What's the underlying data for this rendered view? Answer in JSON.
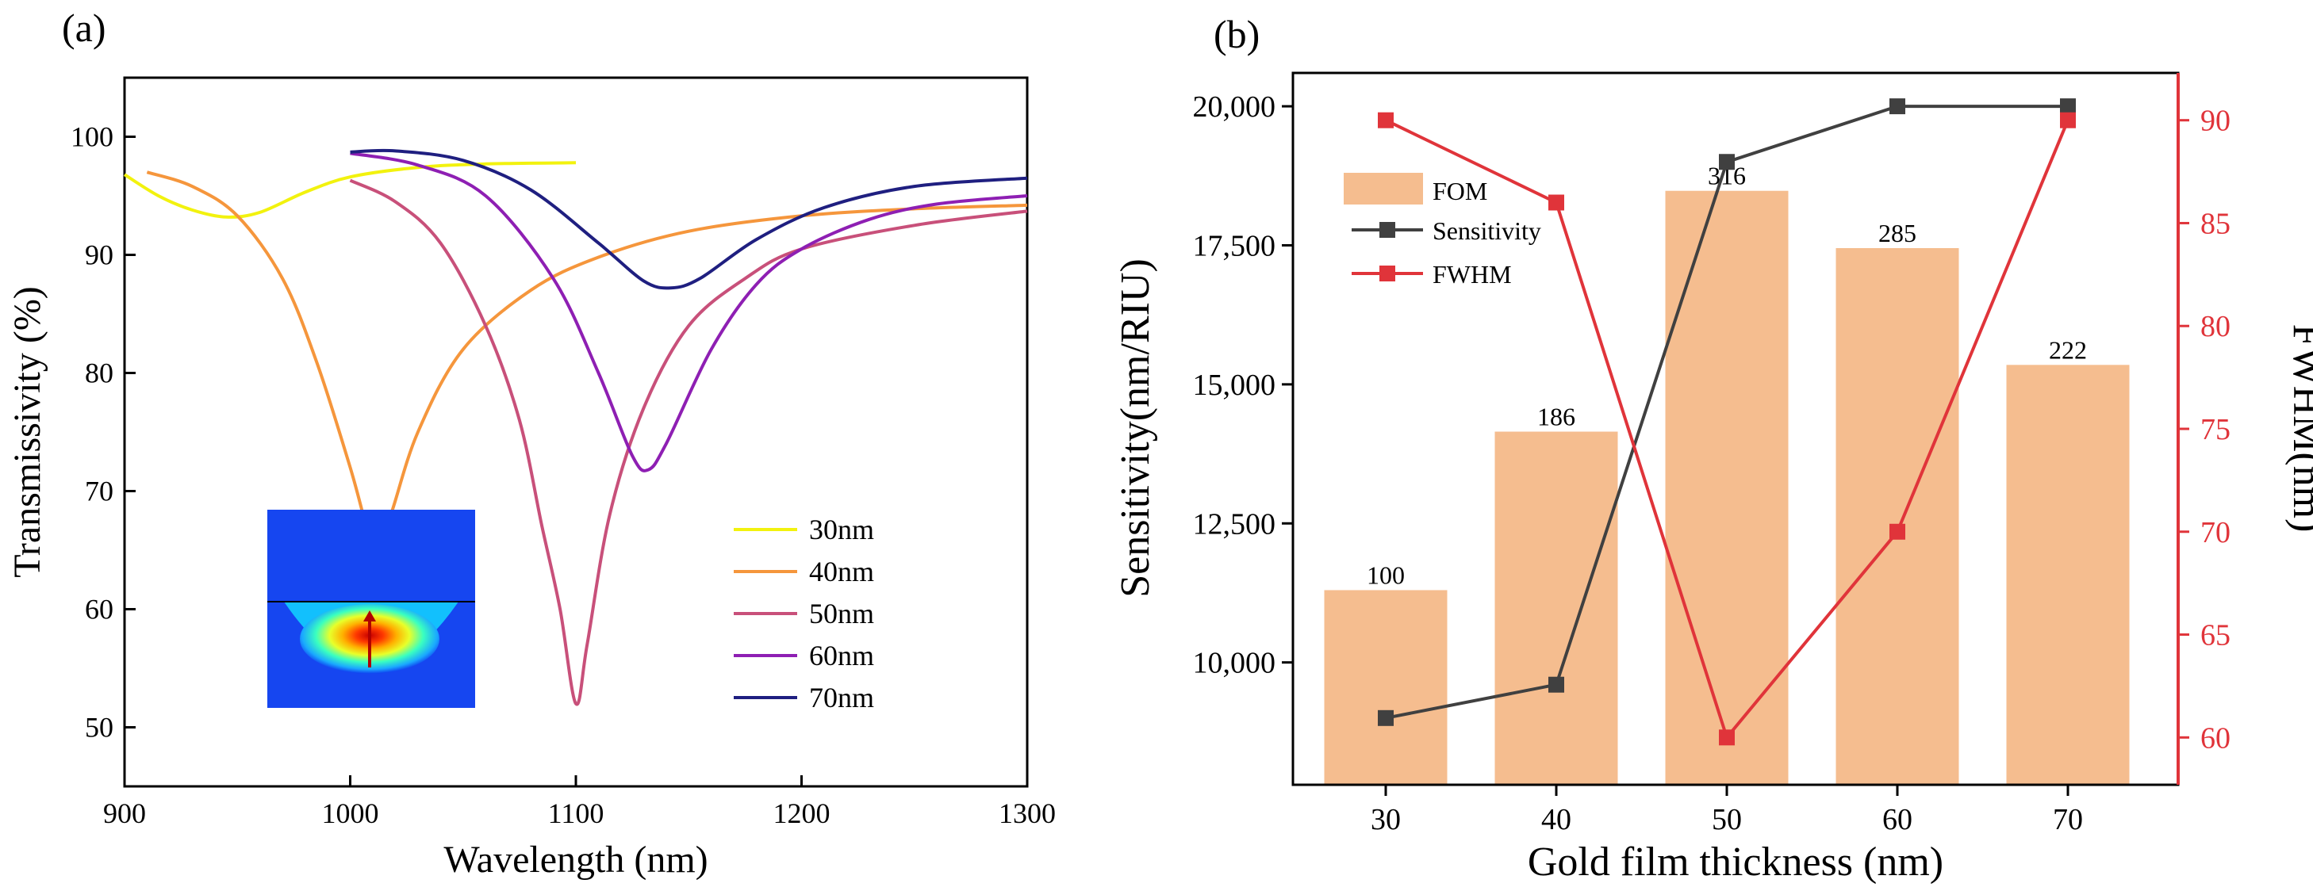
{
  "chart_data": [
    {
      "type": "line",
      "panel_label": "(a)",
      "xlabel": "Wavelength (nm)",
      "ylabel": "Transmissivity (%)",
      "xlim": [
        900,
        1300
      ],
      "ylim": [
        45,
        105
      ],
      "xticks": [
        900,
        1000,
        1100,
        1200,
        1300
      ],
      "yticks": [
        50,
        60,
        70,
        80,
        90,
        100
      ],
      "legend_position": "lower-right",
      "inset": "field distribution image",
      "series": [
        {
          "name": "30nm",
          "color": "#f2f20e",
          "x": [
            900,
            915,
            930,
            945,
            960,
            980,
            1000,
            1030,
            1060,
            1100
          ],
          "y": [
            96.8,
            95.0,
            93.8,
            93.2,
            93.6,
            95.3,
            96.6,
            97.4,
            97.7,
            97.8
          ]
        },
        {
          "name": "40nm",
          "color": "#f5963c",
          "x": [
            910,
            930,
            950,
            970,
            985,
            1000,
            1008,
            1012,
            1018,
            1030,
            1050,
            1080,
            1110,
            1150,
            1200,
            1250,
            1300
          ],
          "y": [
            97.0,
            95.8,
            93.3,
            88.0,
            81.0,
            72.0,
            66.5,
            65.5,
            68.0,
            75.0,
            82.0,
            87.0,
            89.8,
            92.0,
            93.3,
            93.9,
            94.2
          ]
        },
        {
          "name": "50nm",
          "color": "#c8507a",
          "x": [
            1000,
            1020,
            1040,
            1060,
            1075,
            1085,
            1093,
            1100,
            1105,
            1115,
            1130,
            1150,
            1175,
            1200,
            1250,
            1300
          ],
          "y": [
            96.3,
            94.5,
            91.0,
            84.0,
            76.0,
            67.0,
            60.0,
            52.0,
            57.0,
            68.0,
            77.0,
            84.0,
            88.0,
            90.5,
            92.5,
            93.7
          ]
        },
        {
          "name": "60nm",
          "color": "#8e1fb3",
          "x": [
            1000,
            1030,
            1060,
            1090,
            1110,
            1125,
            1132,
            1140,
            1160,
            1180,
            1200,
            1230,
            1260,
            1300
          ],
          "y": [
            98.6,
            97.6,
            95.0,
            88.0,
            80.0,
            73.0,
            71.8,
            74.0,
            82.0,
            87.5,
            90.5,
            93.0,
            94.3,
            95.0
          ]
        },
        {
          "name": "70nm",
          "color": "#1f1f80",
          "x": [
            1000,
            1020,
            1050,
            1080,
            1110,
            1130,
            1142,
            1155,
            1180,
            1210,
            1250,
            1300
          ],
          "y": [
            98.7,
            98.8,
            98.0,
            95.5,
            91.0,
            87.8,
            87.2,
            88.0,
            91.3,
            94.0,
            95.8,
            96.5
          ]
        }
      ]
    },
    {
      "type": "bar",
      "panel_label": "(b)",
      "xlabel": "Gold film thickness (nm)",
      "ylabel": "Sensitivity(nm/RIU)",
      "ylabel_right": "FWHM(nm)",
      "categories": [
        "30",
        "40",
        "50",
        "60",
        "70"
      ],
      "ylim": [
        7800,
        20600
      ],
      "yticks": [
        "10,000",
        "12,500",
        "15,000",
        "17,500",
        "20,000"
      ],
      "ytick_values": [
        10000,
        12500,
        15000,
        17500,
        20000
      ],
      "ylim_right": [
        57.7,
        92.3
      ],
      "yticks_right": [
        60,
        65,
        70,
        75,
        80,
        85,
        90
      ],
      "legend_position": "top-left",
      "series": [
        {
          "name": "FOM",
          "kind": "bar",
          "color": "#f5bd8f",
          "values": [
            11300,
            14150,
            18480,
            17450,
            15350
          ],
          "labels": [
            "100",
            "186",
            "316",
            "285",
            "222"
          ]
        },
        {
          "name": "Sensitivity",
          "kind": "line",
          "axis": "left",
          "color": "#404040",
          "values": [
            9000,
            9600,
            19000,
            20000,
            20000
          ]
        },
        {
          "name": "FWHM",
          "kind": "line",
          "axis": "right",
          "color": "#e0343a",
          "values": [
            90,
            86,
            60,
            70,
            90
          ]
        }
      ]
    }
  ]
}
